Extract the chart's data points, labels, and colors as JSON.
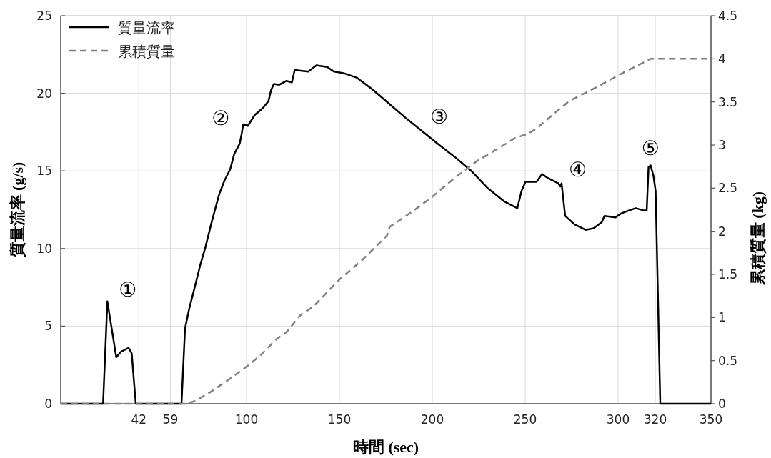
{
  "chart_data": {
    "type": "line",
    "xlabel": "時間 (sec)",
    "ylabel": "質量流率 (g/s)",
    "y2label": "累積質量 (kg)",
    "xlim": [
      0,
      350
    ],
    "xticks": [
      42,
      59,
      100,
      150,
      200,
      250,
      300,
      320,
      350
    ],
    "ylim": [
      0,
      25
    ],
    "yticks": [
      0,
      5,
      10,
      15,
      20,
      25
    ],
    "y2lim": [
      0,
      4.5
    ],
    "y2ticks": [
      0,
      0.5,
      1,
      1.5,
      2,
      2.5,
      3,
      3.5,
      4,
      4.5
    ],
    "grid": true,
    "legend": "top left",
    "series": [
      {
        "name": "質量流率",
        "color": "#000000",
        "line_style": "solid",
        "x": [
          0,
          22.8,
          25.1,
          29.9,
          32.4,
          36.5,
          38.2,
          40.4,
          65,
          66.9,
          69.1,
          72.1,
          75,
          77.9,
          80.9,
          85.3,
          88.2,
          91.2,
          93.4,
          96.3,
          97.4,
          98.2,
          100.7,
          104.4,
          108.8,
          111.8,
          113.2,
          114.7,
          117.6,
          121.5,
          124.4,
          125.9,
          133.2,
          137.6,
          143.4,
          147.1,
          152.2,
          159.5,
          168.3,
          177,
          185.8,
          194.6,
          203.4,
          212.1,
          221,
          229.7,
          238.5,
          245.8,
          248,
          250.2,
          256.1,
          259.1,
          262,
          267.8,
          269,
          269.6,
          271.5,
          276.6,
          282.5,
          286.8,
          291.2,
          292.7,
          298.5,
          301.5,
          305.8,
          309.5,
          313.9,
          315.4,
          316.4,
          317.5,
          319,
          320.2,
          322.7,
          350
        ],
        "values": [
          0,
          0,
          6.6,
          3.0,
          3.35,
          3.6,
          3.25,
          0,
          0,
          4.85,
          6.1,
          7.5,
          8.9,
          10.1,
          11.55,
          13.5,
          14.4,
          15.1,
          16.1,
          16.75,
          17.4,
          18.0,
          17.9,
          18.6,
          19.05,
          19.5,
          20.2,
          20.6,
          20.55,
          20.8,
          20.7,
          21.5,
          21.4,
          21.8,
          21.7,
          21.4,
          21.3,
          21.0,
          20.2,
          19.3,
          18.4,
          17.55,
          16.7,
          15.9,
          15.0,
          13.9,
          13.05,
          12.6,
          13.7,
          14.3,
          14.3,
          14.8,
          14.55,
          14.2,
          14.0,
          14.2,
          12.1,
          11.55,
          11.2,
          11.3,
          11.7,
          12.1,
          12.0,
          12.25,
          12.45,
          12.6,
          12.45,
          12.45,
          15.25,
          15.35,
          14.7,
          13.7,
          0,
          0
        ]
      },
      {
        "name": "累積質量",
        "color": "#808080",
        "line_style": "dashed",
        "axis": "y2",
        "x": [
          0,
          67.6,
          72.1,
          80.9,
          89.7,
          100,
          107.4,
          116.2,
          121.5,
          129.1,
          136.1,
          150,
          162.4,
          175.6,
          177,
          188.7,
          200,
          212.1,
          223.8,
          238.5,
          244.4,
          251.4,
          256.1,
          266.4,
          273.7,
          288.3,
          302.9,
          317.5,
          350
        ],
        "values": [
          0,
          0,
          0.03,
          0.14,
          0.27,
          0.43,
          0.56,
          0.75,
          0.83,
          1.03,
          1.13,
          1.44,
          1.67,
          1.95,
          2.05,
          2.22,
          2.4,
          2.62,
          2.81,
          3.0,
          3.08,
          3.13,
          3.19,
          3.38,
          3.51,
          3.67,
          3.84,
          4.0,
          4.0
        ]
      }
    ],
    "annotations": [
      "①",
      "②",
      "③",
      "④",
      "⑤"
    ]
  }
}
